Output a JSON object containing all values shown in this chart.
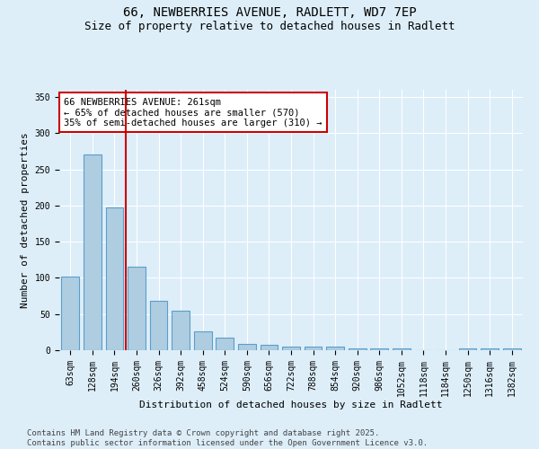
{
  "title_line1": "66, NEWBERRIES AVENUE, RADLETT, WD7 7EP",
  "title_line2": "Size of property relative to detached houses in Radlett",
  "xlabel": "Distribution of detached houses by size in Radlett",
  "ylabel": "Number of detached properties",
  "categories": [
    "63sqm",
    "128sqm",
    "194sqm",
    "260sqm",
    "326sqm",
    "392sqm",
    "458sqm",
    "524sqm",
    "590sqm",
    "656sqm",
    "722sqm",
    "788sqm",
    "854sqm",
    "920sqm",
    "986sqm",
    "1052sqm",
    "1118sqm",
    "1184sqm",
    "1250sqm",
    "1316sqm",
    "1382sqm"
  ],
  "values": [
    102,
    271,
    197,
    115,
    68,
    55,
    26,
    18,
    9,
    8,
    5,
    5,
    5,
    3,
    2,
    2,
    0,
    0,
    3,
    3,
    2
  ],
  "bar_color": "#aecde1",
  "bar_edge_color": "#5b9ec9",
  "vline_x": 2.5,
  "vline_color": "#cc0000",
  "annotation_text": "66 NEWBERRIES AVENUE: 261sqm\n← 65% of detached houses are smaller (570)\n35% of semi-detached houses are larger (310) →",
  "annotation_box_color": "#ffffff",
  "annotation_edge_color": "#cc0000",
  "ylim": [
    0,
    360
  ],
  "yticks": [
    0,
    50,
    100,
    150,
    200,
    250,
    300,
    350
  ],
  "background_color": "#ddeef9",
  "plot_bg_color": "#ddeef9",
  "footer_text": "Contains HM Land Registry data © Crown copyright and database right 2025.\nContains public sector information licensed under the Open Government Licence v3.0.",
  "title_fontsize": 10,
  "subtitle_fontsize": 9,
  "axis_label_fontsize": 8,
  "tick_fontsize": 7,
  "annotation_fontsize": 7.5,
  "footer_fontsize": 6.5,
  "bar_width": 0.8
}
